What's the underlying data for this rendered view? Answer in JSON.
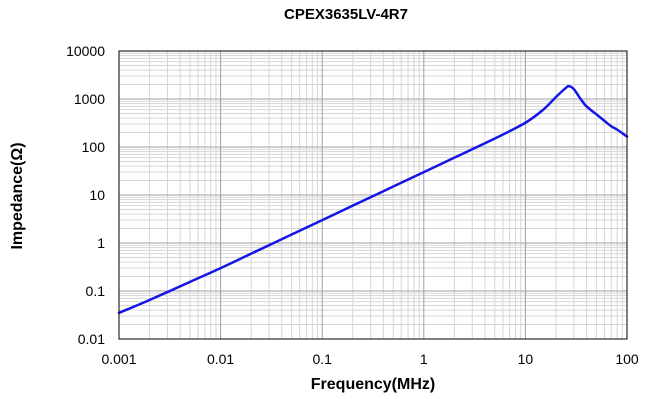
{
  "chart_data": {
    "type": "line",
    "title": "CPEX3635LV-4R7",
    "xlabel": "Frequency(MHz)",
    "ylabel": "Impedance(Ω)",
    "x_scale": "log",
    "y_scale": "log",
    "xlim": [
      0.001,
      100
    ],
    "ylim": [
      0.01,
      10000
    ],
    "x_ticks": [
      0.001,
      0.01,
      0.1,
      1,
      10,
      100
    ],
    "x_tick_labels": [
      "0.001",
      "0.01",
      "0.1",
      "1",
      "10",
      "100"
    ],
    "y_ticks": [
      0.01,
      0.1,
      1,
      10,
      100,
      1000,
      10000
    ],
    "y_tick_labels": [
      "0.01",
      "0.1",
      "1",
      "10",
      "100",
      "1000",
      "10000"
    ],
    "grid": true,
    "series": [
      {
        "color": "#1515e6",
        "x": [
          0.001,
          0.002,
          0.005,
          0.01,
          0.02,
          0.05,
          0.1,
          0.2,
          0.5,
          1,
          2,
          5,
          10,
          15,
          20,
          25,
          27,
          30,
          35,
          40,
          50,
          60,
          70,
          80,
          100
        ],
        "y": [
          0.035,
          0.065,
          0.155,
          0.3,
          0.6,
          1.5,
          3,
          6,
          15,
          30,
          60,
          150,
          320,
          600,
          1100,
          1700,
          1850,
          1600,
          1000,
          700,
          480,
          350,
          270,
          230,
          165
        ]
      }
    ]
  }
}
